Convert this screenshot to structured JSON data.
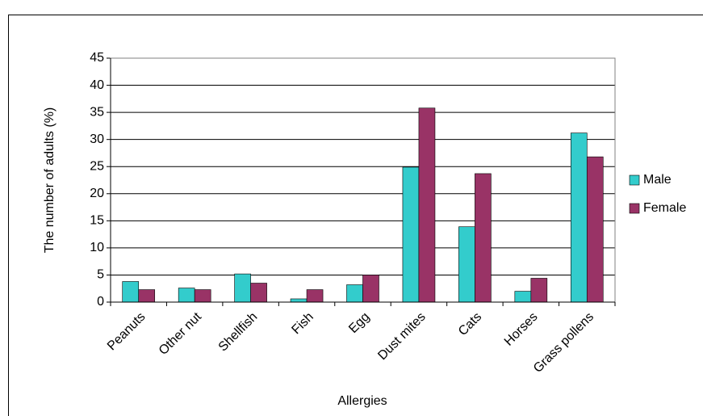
{
  "chart_data": {
    "type": "bar",
    "categories": [
      "Peanuts",
      "Other nut",
      "Shellfish",
      "Fish",
      "Egg",
      "Dust mites",
      "Cats",
      "Horses",
      "Grass pollens"
    ],
    "series": [
      {
        "name": "Male",
        "color": "#33cccc",
        "values": [
          3.8,
          2.6,
          5.2,
          0.6,
          3.2,
          24.9,
          13.9,
          2.0,
          31.2
        ]
      },
      {
        "name": "Female",
        "color": "#993366",
        "values": [
          2.3,
          2.3,
          3.5,
          2.3,
          5.0,
          35.8,
          23.7,
          4.4,
          26.8
        ]
      }
    ],
    "x_label": "Allergies",
    "y_label": "The number of adults  (%)",
    "ylim": [
      0,
      45
    ],
    "yticks": [
      0,
      5,
      10,
      15,
      20,
      25,
      30,
      35,
      40,
      45
    ],
    "grid": true,
    "legend": "right"
  }
}
